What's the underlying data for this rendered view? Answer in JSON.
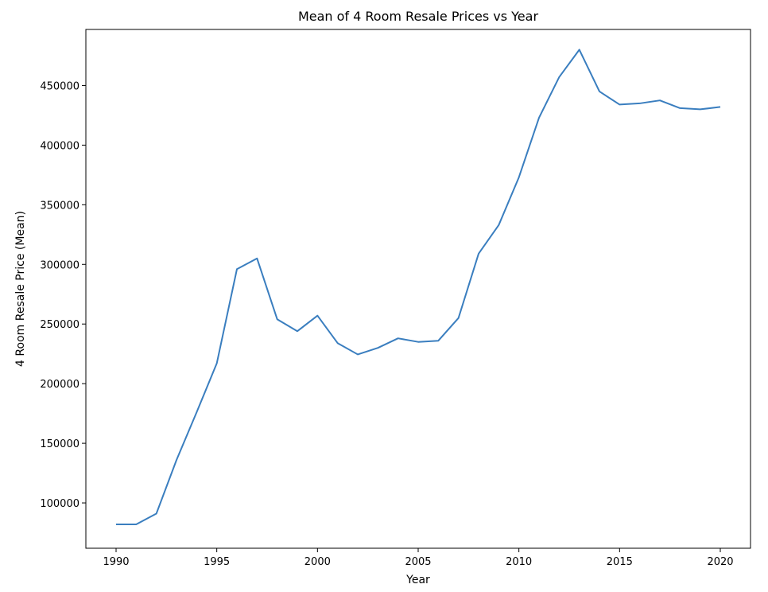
{
  "chart_data": {
    "type": "line",
    "title": "Mean of 4 Room Resale Prices vs Year",
    "xlabel": "Year",
    "ylabel": "4 Room Resale Price (Mean)",
    "xlim": [
      1988.5,
      2021.5
    ],
    "ylim": [
      62000,
      497000
    ],
    "grid": false,
    "x_ticks": [
      1990,
      1995,
      2000,
      2005,
      2010,
      2015,
      2020
    ],
    "y_ticks": [
      100000,
      150000,
      200000,
      250000,
      300000,
      350000,
      400000,
      450000
    ],
    "series": [
      {
        "color": "#3a7ebf",
        "x": [
          1990,
          1991,
          1992,
          1993,
          1994,
          1995,
          1996,
          1997,
          1998,
          1999,
          2000,
          2001,
          2002,
          2003,
          2004,
          2005,
          2006,
          2007,
          2008,
          2009,
          2010,
          2011,
          2012,
          2013,
          2014,
          2015,
          2016,
          2017,
          2018,
          2019,
          2020
        ],
        "y": [
          82000,
          82000,
          91000,
          136000,
          176000,
          217000,
          296000,
          305000,
          254000,
          244000,
          257000,
          234000,
          224500,
          230000,
          238000,
          235000,
          236000,
          255000,
          309000,
          333000,
          373000,
          423000,
          457000,
          480000,
          445000,
          434000,
          435000,
          437500,
          431000,
          430000,
          432000
        ]
      }
    ]
  }
}
